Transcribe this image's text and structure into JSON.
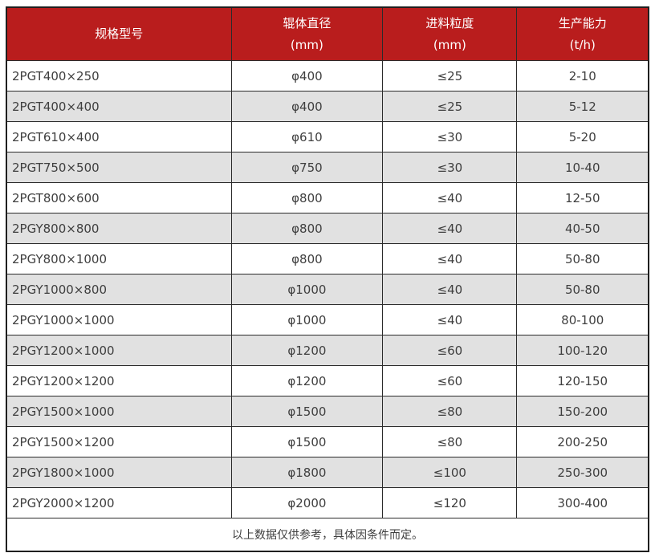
{
  "table": {
    "headers": [
      {
        "line1": "规格型号",
        "line2": ""
      },
      {
        "line1": "辊体直径",
        "line2": "(mm)"
      },
      {
        "line1": "进料粒度",
        "line2": "(mm)"
      },
      {
        "line1": "生产能力",
        "line2": "(t/h)"
      }
    ],
    "rows": [
      [
        "2PGT400×250",
        "φ400",
        "≤25",
        "2-10"
      ],
      [
        "2PGT400×400",
        "φ400",
        "≤25",
        "5-12"
      ],
      [
        "2PGT610×400",
        "φ610",
        "≤30",
        "5-20"
      ],
      [
        "2PGT750×500",
        "φ750",
        "≤30",
        "10-40"
      ],
      [
        "2PGT800×600",
        "φ800",
        "≤40",
        "12-50"
      ],
      [
        "2PGY800×800",
        "φ800",
        "≤40",
        "40-50"
      ],
      [
        "2PGY800×1000",
        "φ800",
        "≤40",
        "50-80"
      ],
      [
        "2PGY1000×800",
        "φ1000",
        "≤40",
        "50-80"
      ],
      [
        "2PGY1000×1000",
        "φ1000",
        "≤40",
        "80-100"
      ],
      [
        "2PGY1200×1000",
        "φ1200",
        "≤60",
        "100-120"
      ],
      [
        "2PGY1200×1200",
        "φ1200",
        "≤60",
        "120-150"
      ],
      [
        "2PGY1500×1000",
        "φ1500",
        "≤80",
        "150-200"
      ],
      [
        "2PGY1500×1200",
        "φ1500",
        "≤80",
        "200-250"
      ],
      [
        "2PGY1800×1000",
        "φ1800",
        "≤100",
        "250-300"
      ],
      [
        "2PGY2000×1200",
        "φ2000",
        "≤120",
        "300-400"
      ]
    ],
    "footer": "以上数据仅供参考，具体因条件而定。"
  },
  "colors": {
    "header_bg": "#b91d1d",
    "header_text": "#ffffff",
    "row_alt_bg": "#e1e1e1",
    "cell_text": "#3f3f3f",
    "border_inner": "#2b2b2b",
    "border_outer": "#1f1f1f"
  }
}
